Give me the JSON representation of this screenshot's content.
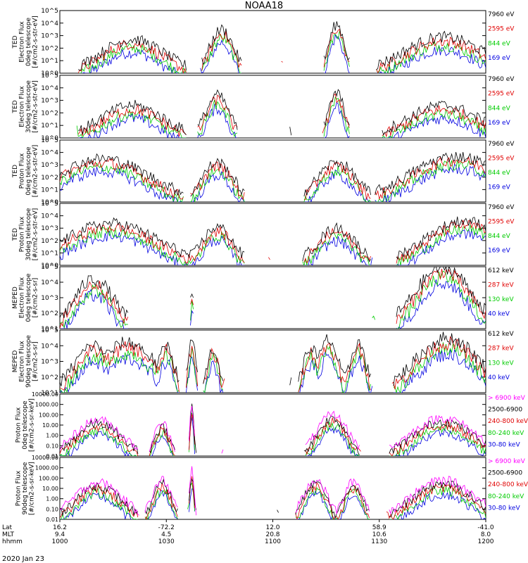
{
  "chart_data": {
    "type": "line",
    "title": "NOAA18",
    "date_label": "2020 Jan 23",
    "x_axis_rows": [
      {
        "label": "Lat",
        "ticks": [
          "16.2",
          "-72.2",
          "12.0",
          "58.9",
          "-41.0"
        ]
      },
      {
        "label": "MLT",
        "ticks": [
          "9.4",
          "4.5",
          "20.8",
          "10.6",
          "8.0"
        ]
      },
      {
        "label": "hhmm",
        "ticks": [
          "1000",
          "1030",
          "1100",
          "1130",
          "1200"
        ]
      }
    ],
    "panels": [
      {
        "ylabel": [
          "TED",
          "Electron Flux",
          "0deg telescope",
          "[#/cm2-s-str-eV]"
        ],
        "yticks": [
          "10^0",
          "10^1",
          "10^2",
          "10^3",
          "10^4",
          "10^5"
        ],
        "scale": "log",
        "ylim": [
          0,
          5
        ],
        "legend": [
          {
            "label": "7960 eV",
            "color": "#000000"
          },
          {
            "label": "2595 eV",
            "color": "#e00000"
          },
          {
            "label": "844 eV",
            "color": "#00cc00"
          },
          {
            "label": "169 eV",
            "color": "#0000e0"
          }
        ],
        "peaks": [
          [
            0.17,
            2.7,
            0.08
          ],
          [
            0.38,
            3.5,
            0.03
          ],
          [
            0.65,
            3.9,
            0.02
          ],
          [
            0.9,
            2.9,
            0.1
          ]
        ]
      },
      {
        "ylabel": [
          "TED",
          "Electron Flux",
          "30deg telescope",
          "[#/cm2-s-str-eV]"
        ],
        "yticks": [
          "10^0",
          "10^1",
          "10^2",
          "10^3",
          "10^4",
          "10^5"
        ],
        "scale": "log",
        "ylim": [
          0,
          5
        ],
        "legend": [
          {
            "label": "7960 eV",
            "color": "#000000"
          },
          {
            "label": "2595 eV",
            "color": "#e00000"
          },
          {
            "label": "844 eV",
            "color": "#00cc00"
          },
          {
            "label": "169 eV",
            "color": "#0000e0"
          }
        ],
        "peaks": [
          [
            0.17,
            2.6,
            0.08
          ],
          [
            0.37,
            3.4,
            0.03
          ],
          [
            0.65,
            3.6,
            0.02
          ],
          [
            0.9,
            2.6,
            0.09
          ]
        ]
      },
      {
        "ylabel": [
          "TED",
          "Proton Flux",
          "0deg telescope",
          "[#/cm2-s-str-eV]"
        ],
        "yticks": [
          "10^0",
          "10^1",
          "10^2",
          "10^3",
          "10^4",
          "10^5"
        ],
        "scale": "log",
        "ylim": [
          0,
          5
        ],
        "legend": [
          {
            "label": "7960 eV",
            "color": "#000000"
          },
          {
            "label": "2595 eV",
            "color": "#e00000"
          },
          {
            "label": "844 eV",
            "color": "#00cc00"
          },
          {
            "label": "169 eV",
            "color": "#0000e0"
          }
        ],
        "peaks": [
          [
            0.1,
            3.5,
            0.12
          ],
          [
            0.37,
            3.2,
            0.04
          ],
          [
            0.65,
            3.2,
            0.05
          ],
          [
            0.93,
            3.7,
            0.12
          ]
        ]
      },
      {
        "ylabel": [
          "TED",
          "Proton Flux",
          "30deg telescope",
          "[#/cm2-s-str-eV]"
        ],
        "yticks": [
          "10^0",
          "10^1",
          "10^2",
          "10^3",
          "10^4",
          "10^5"
        ],
        "scale": "log",
        "ylim": [
          0,
          5
        ],
        "legend": [
          {
            "label": "7960 eV",
            "color": "#000000"
          },
          {
            "label": "2595 eV",
            "color": "#e00000"
          },
          {
            "label": "844 eV",
            "color": "#00cc00"
          },
          {
            "label": "169 eV",
            "color": "#0000e0"
          }
        ],
        "peaks": [
          [
            0.12,
            3.4,
            0.12
          ],
          [
            0.37,
            3.1,
            0.04
          ],
          [
            0.65,
            3.0,
            0.05
          ],
          [
            0.95,
            3.6,
            0.1
          ]
        ]
      },
      {
        "ylabel": [
          "MEPED",
          "Electron Flux",
          "0deg telescope",
          "[#/cm2-s-sr]"
        ],
        "yticks": [
          "10^1",
          "10^2",
          "10^3",
          "10^4",
          "10^5"
        ],
        "scale": "log",
        "ylim": [
          1,
          5
        ],
        "legend": [
          {
            "label": "612 keV",
            "color": "#000000"
          },
          {
            "label": "287 keV",
            "color": "#e00000"
          },
          {
            "label": "130 keV",
            "color": "#00cc00"
          },
          {
            "label": "40 keV",
            "color": "#0000e0"
          }
        ],
        "peaks": [
          [
            0.08,
            4.2,
            0.05
          ],
          [
            0.31,
            3.5,
            0.004
          ],
          [
            0.9,
            5.0,
            0.07
          ]
        ]
      },
      {
        "ylabel": [
          "MEPED",
          "Electron Flux",
          "90deg telescope",
          "[#/cm2-s-sr]"
        ],
        "yticks": [
          "10^1",
          "10^2",
          "10^3",
          "10^4",
          "10^5"
        ],
        "scale": "log",
        "ylim": [
          1,
          5
        ],
        "legend": [
          {
            "label": "612 keV",
            "color": "#000000"
          },
          {
            "label": "287 keV",
            "color": "#e00000"
          },
          {
            "label": "130 keV",
            "color": "#00cc00"
          },
          {
            "label": "40 keV",
            "color": "#0000e0"
          }
        ],
        "peaks": [
          [
            0.08,
            4.0,
            0.05
          ],
          [
            0.16,
            4.2,
            0.07
          ],
          [
            0.25,
            4.0,
            0.02
          ],
          [
            0.31,
            4.2,
            0.01
          ],
          [
            0.36,
            3.8,
            0.015
          ],
          [
            0.59,
            3.9,
            0.02
          ],
          [
            0.63,
            4.4,
            0.025
          ],
          [
            0.7,
            4.2,
            0.02
          ],
          [
            0.91,
            4.5,
            0.08
          ]
        ]
      },
      {
        "ylabel": [
          "Proton Flux",
          "0deg telescope",
          "[#/cm2-s-sr-keV]"
        ],
        "yticks": [
          "0.01",
          "0.10",
          "1.00",
          "10.00",
          "100.00",
          "1000.00",
          "10000.00"
        ],
        "scale": "log",
        "ylim": [
          -2,
          4
        ],
        "legend": [
          {
            "label": "> 6900 keV",
            "color": "#ff00ff"
          },
          {
            "label": "2500-6900",
            "color": "#000000"
          },
          {
            "label": "240-800 keV",
            "color": "#e00000"
          },
          {
            "label": "80-240 keV",
            "color": "#00cc00"
          },
          {
            "label": "30-80 keV",
            "color": "#0000e0"
          }
        ],
        "peaks": [
          [
            0.09,
            1.5,
            0.06
          ],
          [
            0.24,
            1.2,
            0.02
          ],
          [
            0.31,
            3.0,
            0.005
          ],
          [
            0.64,
            2.0,
            0.04
          ],
          [
            0.9,
            1.7,
            0.08
          ]
        ]
      },
      {
        "ylabel": [
          "Proton Flux",
          "90deg telescope",
          "[#/cm2-s-sr-keV]"
        ],
        "yticks": [
          "0.01",
          "0.10",
          "1.00",
          "10.00",
          "100.00",
          "1000.00",
          "10000.00"
        ],
        "scale": "log",
        "ylim": [
          -2,
          4
        ],
        "legend": [
          {
            "label": "> 6900 keV",
            "color": "#ff00ff"
          },
          {
            "label": "2500-6900",
            "color": "#000000"
          },
          {
            "label": "240-800 keV",
            "color": "#e00000"
          },
          {
            "label": "80-240 keV",
            "color": "#00cc00"
          },
          {
            "label": "30-80 keV",
            "color": "#0000e0"
          }
        ],
        "peaks": [
          [
            0.09,
            1.6,
            0.06
          ],
          [
            0.24,
            1.8,
            0.025
          ],
          [
            0.31,
            2.7,
            0.006
          ],
          [
            0.6,
            1.9,
            0.03
          ],
          [
            0.69,
            1.7,
            0.025
          ],
          [
            0.9,
            1.8,
            0.08
          ]
        ]
      }
    ]
  }
}
